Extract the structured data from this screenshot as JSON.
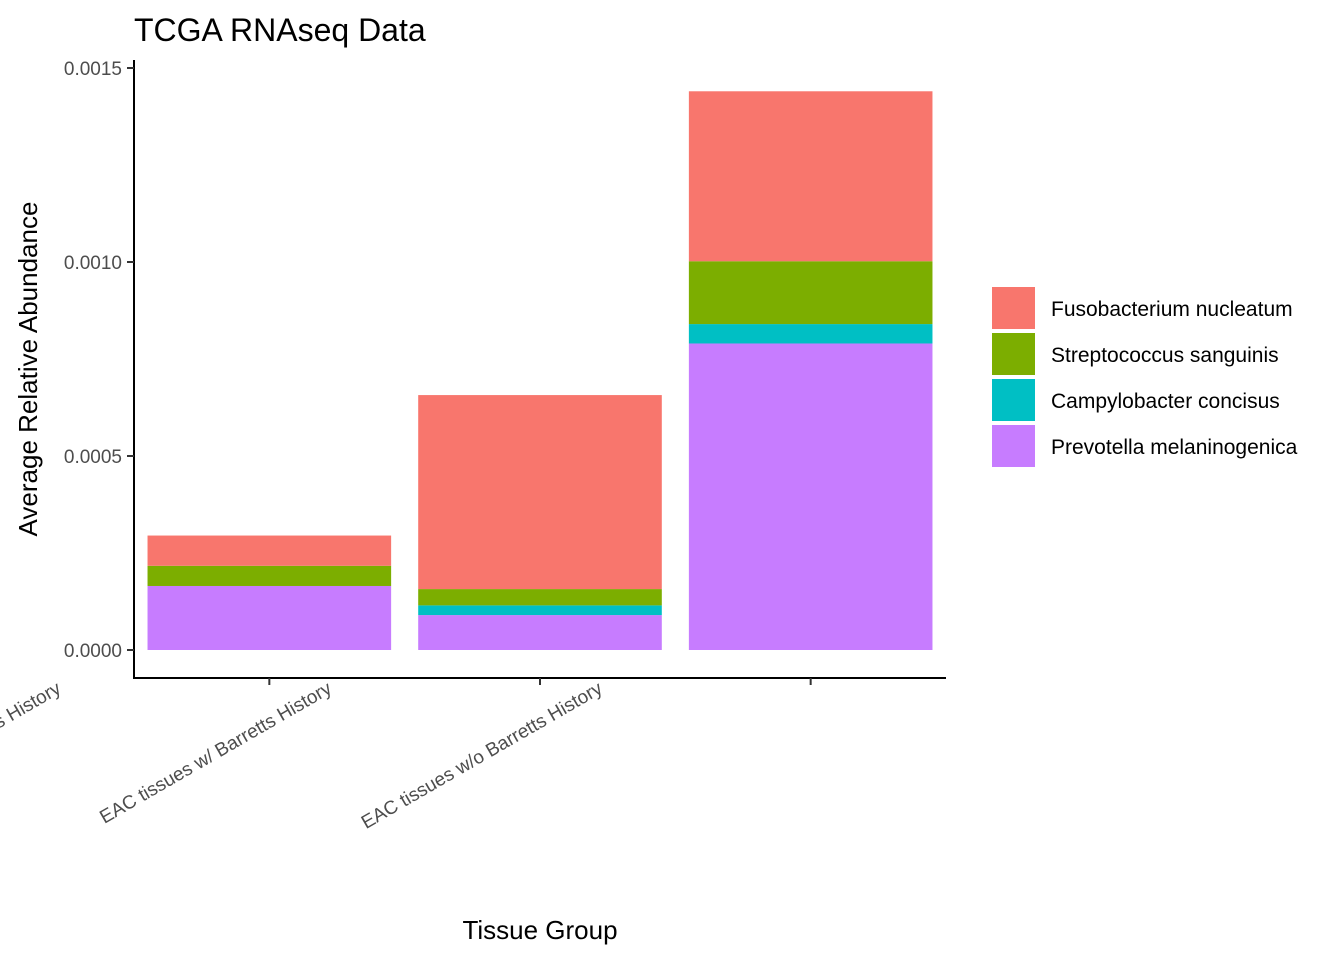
{
  "chart_data": {
    "type": "bar",
    "stacked": true,
    "title": "TCGA RNAseq Data",
    "xlabel": "Tissue Group",
    "ylabel": "Average Relative Abundance",
    "ylim": [
      0,
      0.0015
    ],
    "yticks": [
      "0.0000",
      "0.0005",
      "0.0010",
      "0.0015"
    ],
    "grid": false,
    "legend_position": "right",
    "categories": [
      "EAC-adjacent tissue w/ Barretts History",
      "EAC tissues w/ Barretts History",
      "EAC tissues w/o Barretts History"
    ],
    "series": [
      {
        "name": "Prevotella melaninogenica",
        "color": "#C77CFF",
        "values": [
          0.000165,
          9e-05,
          0.00079
        ]
      },
      {
        "name": "Campylobacter concisus",
        "color": "#00BFC4",
        "values": [
          0.0,
          2.5e-05,
          5e-05
        ]
      },
      {
        "name": "Streptococcus sanguinis",
        "color": "#7CAE00",
        "values": [
          5.2e-05,
          4.2e-05,
          0.000162
        ]
      },
      {
        "name": "Fusobacterium nucleatum",
        "color": "#F8766D",
        "values": [
          7.8e-05,
          0.0005,
          0.000438
        ]
      }
    ],
    "legend_order": [
      "Fusobacterium nucleatum",
      "Streptococcus sanguinis",
      "Campylobacter concisus",
      "Prevotella melaninogenica"
    ]
  }
}
